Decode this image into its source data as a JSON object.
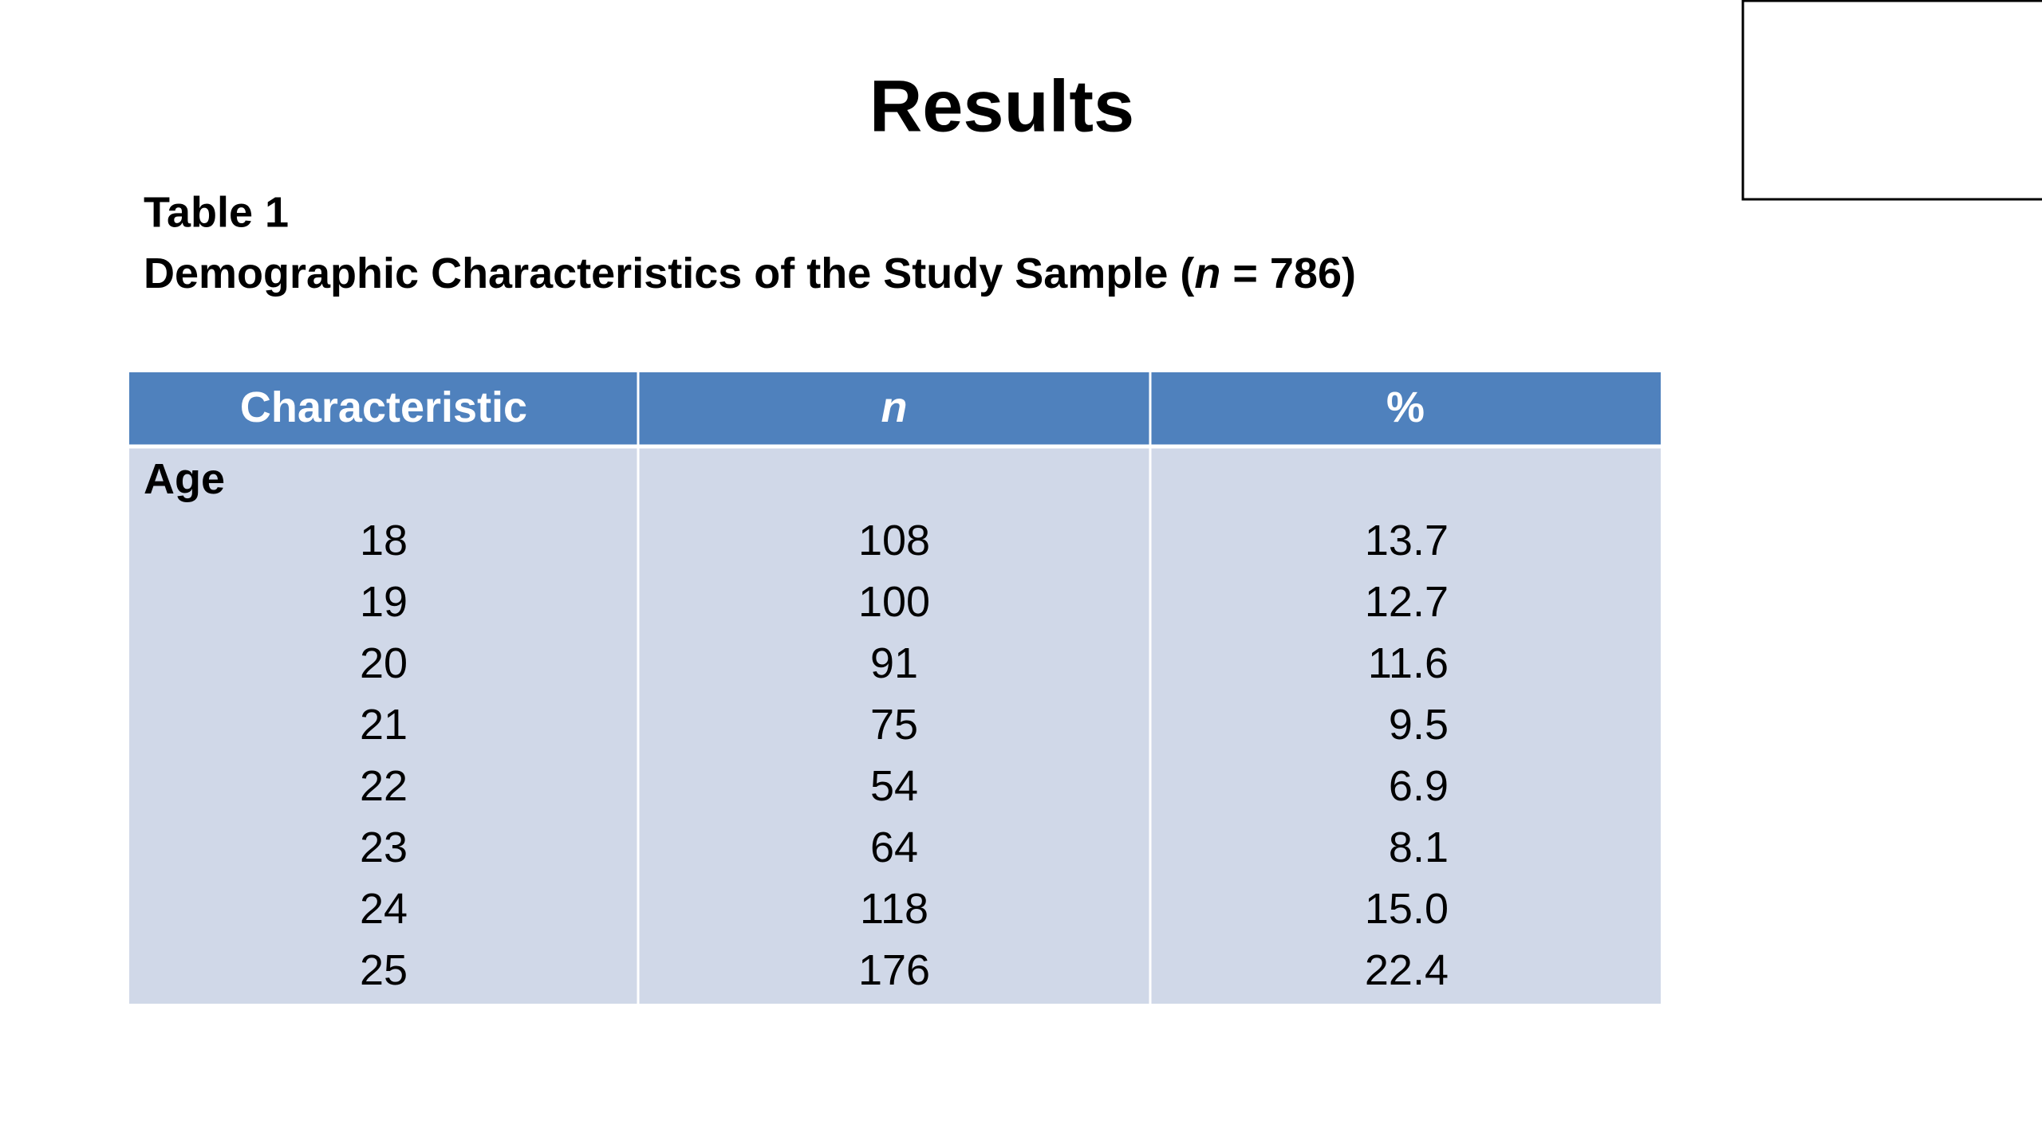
{
  "title": "Results",
  "table_label": "Table 1",
  "caption": {
    "before": "Demographic Characteristics of the Study Sample (",
    "italic": "n",
    "after": " = 786)"
  },
  "table": {
    "header": [
      "Characteristic",
      "n",
      "%"
    ],
    "group": "Age",
    "rows": [
      [
        "18",
        "108",
        "13.7"
      ],
      [
        "19",
        "100",
        "12.7"
      ],
      [
        "20",
        "91",
        "11.6"
      ],
      [
        "21",
        "75",
        "9.5"
      ],
      [
        "22",
        "54",
        "6.9"
      ],
      [
        "23",
        "64",
        "8.1"
      ],
      [
        "24",
        "118",
        "15.0"
      ],
      [
        "25",
        "176",
        "22.4"
      ]
    ]
  }
}
